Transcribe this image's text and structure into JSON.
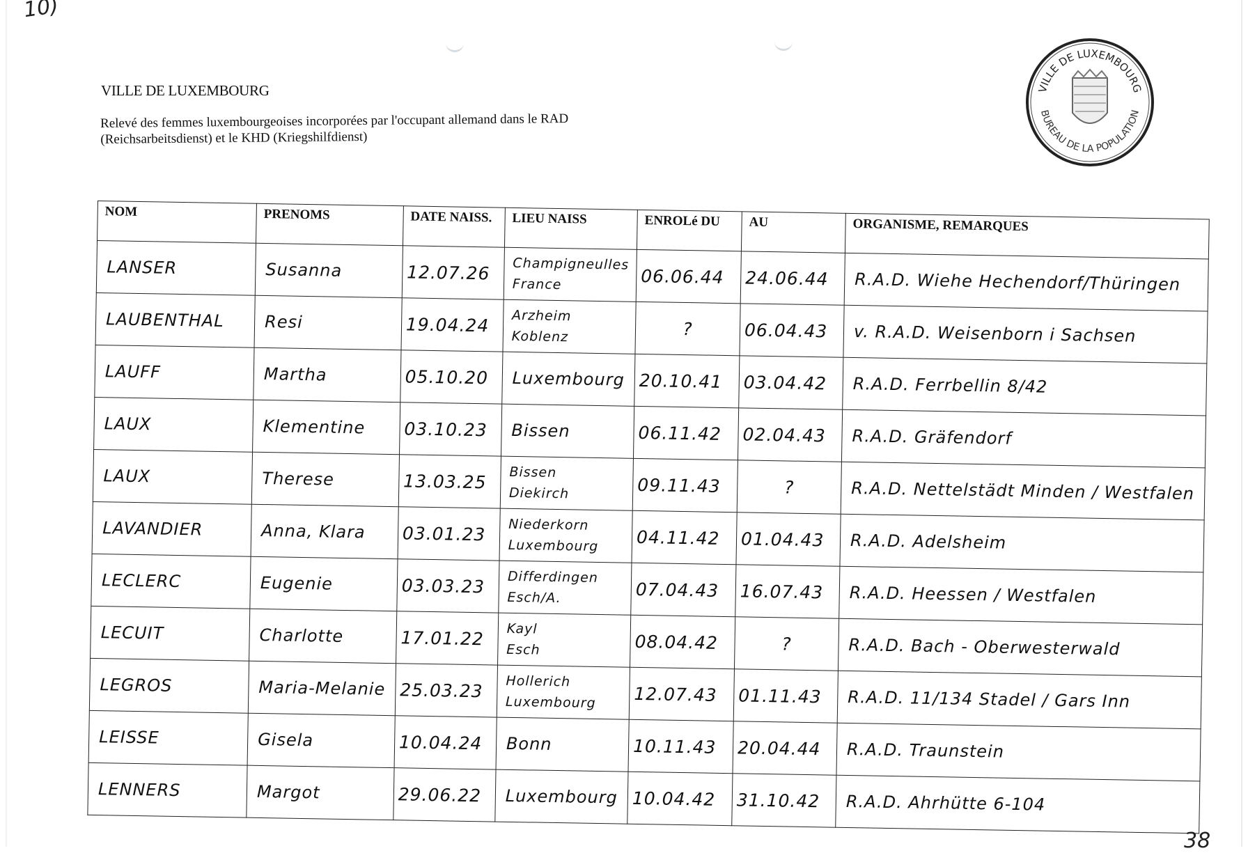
{
  "folio_top": "10)",
  "folio_bottom": "38",
  "header": {
    "organization": "VILLE DE LUXEMBOURG",
    "subtitle": "Relevé des femmes luxembourgeoises incorporées par l'occupant allemand dans le RAD (Reichsarbeitsdienst) et le KHD (Kriegshilfdienst)"
  },
  "stamp": {
    "top_text": "VILLE DE LUXEMBOURG",
    "bottom_text": "BUREAU DE LA POPULATION"
  },
  "table": {
    "columns": [
      "NOM",
      "PRENOMS",
      "DATE NAISS.",
      "LIEU NAISS",
      "ENROLé DU",
      "AU",
      "ORGANISME, REMARQUES"
    ],
    "rows": [
      [
        "LANSER",
        "Susanna",
        "12.07.26",
        "Champigneulles\nFrance",
        "06.06.44",
        "24.06.44",
        "R.A.D. Wiehe Hechendorf/Thüringen"
      ],
      [
        "LAUBENTHAL",
        "Resi",
        "19.04.24",
        "Arzheim\nKoblenz",
        "?",
        "06.04.43",
        "v. R.A.D. Weisenborn i Sachsen"
      ],
      [
        "LAUFF",
        "Martha",
        "05.10.20",
        "Luxembourg",
        "20.10.41",
        "03.04.42",
        "R.A.D. Ferrbellin 8/42"
      ],
      [
        "LAUX",
        "Klementine",
        "03.10.23",
        "Bissen",
        "06.11.42",
        "02.04.43",
        "R.A.D. Gräfendorf"
      ],
      [
        "LAUX",
        "Therese",
        "13.03.25",
        "Bissen\nDiekirch",
        "09.11.43",
        "?",
        "R.A.D. Nettelstädt Minden / Westfalen"
      ],
      [
        "LAVANDIER",
        "Anna, Klara",
        "03.01.23",
        "Niederkorn\nLuxembourg",
        "04.11.42",
        "01.04.43",
        "R.A.D. Adelsheim"
      ],
      [
        "LECLERC",
        "Eugenie",
        "03.03.23",
        "Differdingen\nEsch/A.",
        "07.04.43",
        "16.07.43",
        "R.A.D. Heessen / Westfalen"
      ],
      [
        "LECUIT",
        "Charlotte",
        "17.01.22",
        "Kayl\nEsch",
        "08.04.42",
        "?",
        "R.A.D. Bach - Oberwesterwald"
      ],
      [
        "LEGROS",
        "Maria-Melanie",
        "25.03.23",
        "Hollerich\nLuxembourg",
        "12.07.43",
        "01.11.43",
        "R.A.D. 11/134 Stadel / Gars Inn"
      ],
      [
        "LEISSE",
        "Gisela",
        "10.04.24",
        "Bonn",
        "10.11.43",
        "20.04.44",
        "R.A.D. Traunstein"
      ],
      [
        "LENNERS",
        "Margot",
        "29.06.22",
        "Luxembourg",
        "10.04.42",
        "31.10.42",
        "R.A.D. Ahrhütte 6-104"
      ]
    ]
  }
}
